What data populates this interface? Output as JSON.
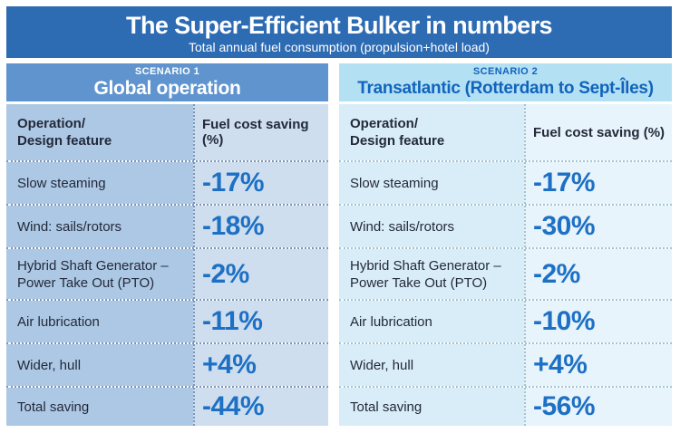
{
  "header": {
    "title": "The Super-Efficient Bulker in numbers",
    "subtitle": "Total annual fuel consumption (propulsion+hotel load)"
  },
  "columns": {
    "feature": "Operation/\nDesign feature",
    "saving": "Fuel cost saving (%)"
  },
  "panels": [
    {
      "scenario_label": "SCENARIO 1",
      "scenario_title": "Global operation",
      "rows": [
        {
          "feature": "Slow steaming",
          "value": "-17%"
        },
        {
          "feature": "Wind: sails/rotors",
          "value": "-18%"
        },
        {
          "feature": "Hybrid Shaft Generator –\nPower Take Out (PTO)",
          "value": "-2%"
        },
        {
          "feature": "Air lubrication",
          "value": "-11%"
        },
        {
          "feature": "Wider, hull",
          "value": "+4%"
        },
        {
          "feature": "Total saving",
          "value": "-44%"
        }
      ]
    },
    {
      "scenario_label": "SCENARIO 2",
      "scenario_title": "Transatlantic (Rotterdam to Sept-Îles)",
      "rows": [
        {
          "feature": "Slow steaming",
          "value": "-17%"
        },
        {
          "feature": "Wind: sails/rotors",
          "value": "-30%"
        },
        {
          "feature": "Hybrid Shaft Generator –\nPower Take Out (PTO)",
          "value": "-2%"
        },
        {
          "feature": "Air lubrication",
          "value": "-10%"
        },
        {
          "feature": "Wider, hull",
          "value": "+4%"
        },
        {
          "feature": "Total saving",
          "value": "-56%"
        }
      ]
    }
  ],
  "chart_data": [
    {
      "type": "table",
      "title": "Scenario 1 — Global operation",
      "columns": [
        "Operation/Design feature",
        "Fuel cost saving (%)"
      ],
      "rows": [
        [
          "Slow steaming",
          -17
        ],
        [
          "Wind: sails/rotors",
          -18
        ],
        [
          "Hybrid Shaft Generator – Power Take Out (PTO)",
          -2
        ],
        [
          "Air lubrication",
          -11
        ],
        [
          "Wider, hull",
          4
        ],
        [
          "Total saving",
          -44
        ]
      ]
    },
    {
      "type": "table",
      "title": "Scenario 2 — Transatlantic (Rotterdam to Sept-Îles)",
      "columns": [
        "Operation/Design feature",
        "Fuel cost saving (%)"
      ],
      "rows": [
        [
          "Slow steaming",
          -17
        ],
        [
          "Wind: sails/rotors",
          -30
        ],
        [
          "Hybrid Shaft Generator – Power Take Out (PTO)",
          -2
        ],
        [
          "Air lubrication",
          -10
        ],
        [
          "Wider, hull",
          4
        ],
        [
          "Total saving",
          -56
        ]
      ]
    }
  ],
  "colors": {
    "banner_bg": "#2D6BB3",
    "banner_fg": "#FFFFFF",
    "s1_head_bg": "#5F94CE",
    "s1_head_fg": "#FFFFFF",
    "s1_label_bg": "#ADC8E4",
    "s1_value_bg": "#CEDEEF",
    "s1_sep": "#7E95B5",
    "s2_head_bg": "#B4E0F4",
    "s2_head_fg": "#1164BC",
    "s2_label_bg": "#D9EDF8",
    "s2_value_bg": "#E7F4FB",
    "s2_sep": "#A5C4D1",
    "value_fg": "#1E70C5",
    "text_dark": "#23293A"
  }
}
